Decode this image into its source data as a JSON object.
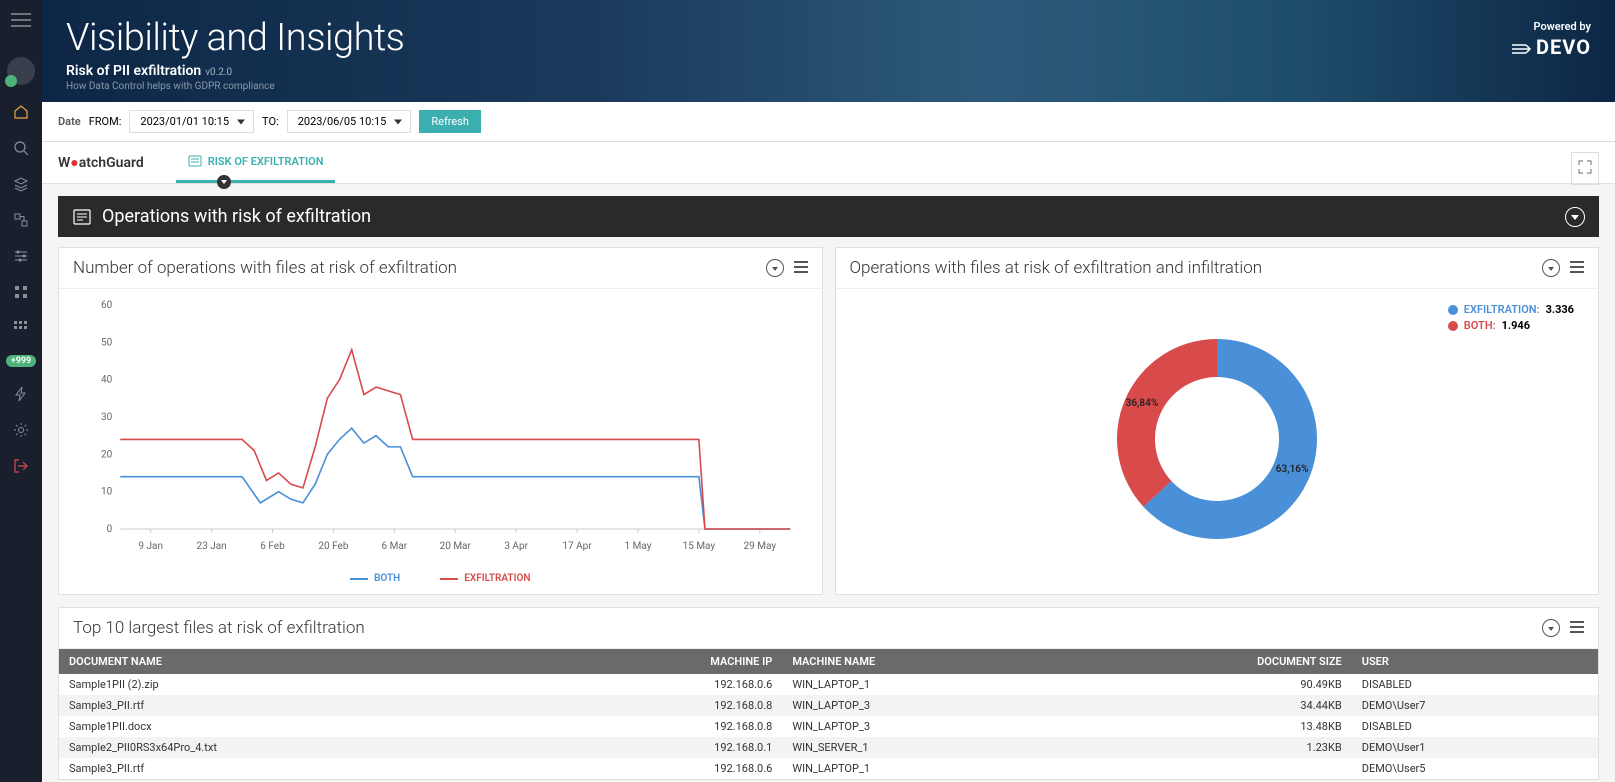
{
  "sidebar": {
    "badge999": "+999"
  },
  "header": {
    "title": "Visibility and Insights",
    "subtitle": "Risk of PII exfiltration",
    "version": "v0.2.0",
    "description": "How Data Control helps with GDPR compliance",
    "powered_label": "Powered by",
    "powered_brand": "DEVO"
  },
  "dateBar": {
    "label": "Date",
    "from_label": "FROM:",
    "from_value": "2023/01/01 10:15",
    "to_label": "TO:",
    "to_value": "2023/06/05 10:15",
    "refresh": "Refresh"
  },
  "tabBar": {
    "brand": "WatchGuard",
    "tab1": "RISK OF EXFILTRATION"
  },
  "section": {
    "title": "Operations with risk of exfiltration"
  },
  "lineChart": {
    "title": "Number of operations with files at risk of exfiltration",
    "yMax": 60,
    "yTicks": [
      "0",
      "10",
      "20",
      "30",
      "40",
      "50",
      "60"
    ],
    "xLabels": [
      "9 Jan",
      "23 Jan",
      "6 Feb",
      "20 Feb",
      "6 Mar",
      "20 Mar",
      "3 Apr",
      "17 Apr",
      "1 May",
      "15 May",
      "29 May"
    ],
    "series": [
      {
        "name": "BOTH",
        "color": "#4a90d9",
        "points": [
          [
            0,
            14
          ],
          [
            1,
            14
          ],
          [
            2,
            14
          ],
          [
            2.3,
            7
          ],
          [
            2.6,
            10
          ],
          [
            2.8,
            8
          ],
          [
            3,
            7
          ],
          [
            3.2,
            12
          ],
          [
            3.4,
            20
          ],
          [
            3.6,
            24
          ],
          [
            3.8,
            27
          ],
          [
            4,
            23
          ],
          [
            4.2,
            25
          ],
          [
            4.4,
            22
          ],
          [
            4.6,
            22
          ],
          [
            4.8,
            14
          ],
          [
            5,
            14
          ],
          [
            9.5,
            14
          ],
          [
            9.6,
            0
          ],
          [
            11,
            0
          ]
        ]
      },
      {
        "name": "EXFILTRATION",
        "color": "#d94a4a",
        "points": [
          [
            0,
            24
          ],
          [
            2,
            24
          ],
          [
            2.2,
            21
          ],
          [
            2.4,
            13
          ],
          [
            2.6,
            15
          ],
          [
            2.8,
            12
          ],
          [
            3,
            11
          ],
          [
            3.2,
            22
          ],
          [
            3.4,
            35
          ],
          [
            3.6,
            40
          ],
          [
            3.8,
            48
          ],
          [
            4,
            36
          ],
          [
            4.2,
            38
          ],
          [
            4.4,
            37
          ],
          [
            4.6,
            36
          ],
          [
            4.8,
            24
          ],
          [
            5,
            24
          ],
          [
            9.5,
            24
          ],
          [
            9.6,
            0
          ],
          [
            11,
            0
          ]
        ]
      }
    ],
    "legend": [
      {
        "name": "BOTH",
        "color": "#4a90d9"
      },
      {
        "name": "EXFILTRATION",
        "color": "#d94a4a"
      }
    ]
  },
  "donut": {
    "title": "Operations with files at risk of exfiltration and infiltration",
    "segments": [
      {
        "label": "EXFILTRATION",
        "value": "3.336",
        "percent": 63.16,
        "percentLabel": "63,16%",
        "color": "#4a90d9"
      },
      {
        "label": "BOTH",
        "value": "1.946",
        "percent": 36.84,
        "percentLabel": "36,84%",
        "color": "#d94a4a"
      }
    ]
  },
  "table": {
    "title": "Top 10 largest files at risk of exfiltration",
    "columns": [
      "DOCUMENT NAME",
      "MACHINE IP",
      "MACHINE NAME",
      "DOCUMENT SIZE",
      "USER"
    ],
    "rows": [
      [
        "Sample1PII (2).zip",
        "192.168.0.6",
        "WIN_LAPTOP_1",
        "90.49KB",
        "DISABLED"
      ],
      [
        "Sample3_PII.rtf",
        "192.168.0.8",
        "WIN_LAPTOP_3",
        "34.44KB",
        "DEMO\\User7"
      ],
      [
        "Sample1PII.docx",
        "192.168.0.8",
        "WIN_LAPTOP_3",
        "13.48KB",
        "DISABLED"
      ],
      [
        "Sample2_PII0RS3x64Pro_4.txt",
        "192.168.0.1",
        "WIN_SERVER_1",
        "1.23KB",
        "DEMO\\User1"
      ],
      [
        "Sample3_PII.rtf",
        "192.168.0.6",
        "WIN_LAPTOP_1",
        "",
        "DEMO\\User5"
      ]
    ]
  }
}
